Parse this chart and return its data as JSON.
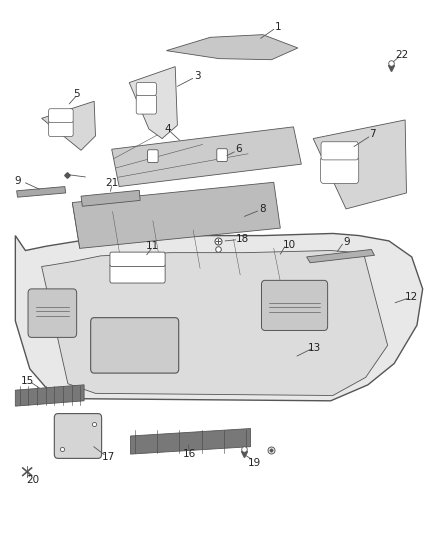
{
  "bg_color": "#ffffff",
  "line_color": "#555555",
  "label_color": "#222222",
  "fig_width": 4.38,
  "fig_height": 5.33,
  "dpi": 100
}
